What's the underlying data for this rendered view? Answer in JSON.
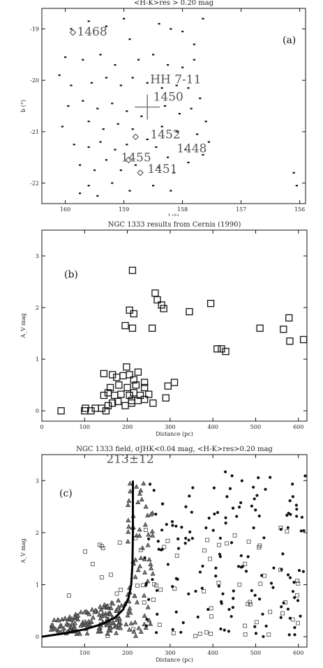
{
  "chart_data": [
    {
      "id": "a",
      "type": "scatter",
      "title": "<H-K>res > 0.20 mag",
      "xlabel": "l (°)",
      "ylabel": "b (°)",
      "panel_label": "(a)",
      "xlim": [
        160.4,
        155.9
      ],
      "ylim": [
        -22.4,
        -18.6
      ],
      "xticks": [
        160,
        159,
        158,
        157,
        156
      ],
      "yticks": [
        -19,
        -20,
        -21,
        -22
      ],
      "cross_label": "HH 7-11",
      "cross": [
        158.6,
        -20.52
      ],
      "annotations": [
        {
          "label": "1468",
          "x": 159.8,
          "y": -19.05
        },
        {
          "label": "1450",
          "x": 158.5,
          "y": -20.32
        },
        {
          "label": "1452",
          "x": 158.55,
          "y": -21.05
        },
        {
          "label": "1448",
          "x": 158.1,
          "y": -21.32
        },
        {
          "label": "1455",
          "x": 159.05,
          "y": -21.5
        },
        {
          "label": "1451",
          "x": 158.6,
          "y": -21.72
        }
      ],
      "markers": [
        {
          "x": 159.87,
          "y": -19.07
        },
        {
          "x": 158.8,
          "y": -21.1
        },
        {
          "x": 158.92,
          "y": -21.55
        },
        {
          "x": 158.72,
          "y": -21.8
        }
      ],
      "points": [
        [
          159.9,
          -19.0
        ],
        [
          159.6,
          -18.85
        ],
        [
          159.3,
          -18.95
        ],
        [
          159.0,
          -18.8
        ],
        [
          158.9,
          -19.2
        ],
        [
          158.4,
          -18.9
        ],
        [
          158.2,
          -19.0
        ],
        [
          158.0,
          -19.05
        ],
        [
          157.8,
          -19.3
        ],
        [
          157.65,
          -18.8
        ],
        [
          160.0,
          -19.55
        ],
        [
          159.7,
          -19.6
        ],
        [
          159.4,
          -19.5
        ],
        [
          159.15,
          -19.7
        ],
        [
          158.75,
          -19.6
        ],
        [
          158.5,
          -19.5
        ],
        [
          158.25,
          -19.7
        ],
        [
          158.0,
          -19.75
        ],
        [
          157.8,
          -19.6
        ],
        [
          160.1,
          -19.9
        ],
        [
          159.9,
          -20.1
        ],
        [
          159.55,
          -20.05
        ],
        [
          159.3,
          -19.95
        ],
        [
          159.05,
          -20.1
        ],
        [
          158.85,
          -19.95
        ],
        [
          158.6,
          -20.05
        ],
        [
          158.35,
          -20.15
        ],
        [
          158.1,
          -20.1
        ],
        [
          157.9,
          -20.15
        ],
        [
          157.7,
          -20.35
        ],
        [
          159.95,
          -20.5
        ],
        [
          159.7,
          -20.4
        ],
        [
          159.45,
          -20.55
        ],
        [
          159.2,
          -20.45
        ],
        [
          158.95,
          -20.6
        ],
        [
          158.7,
          -20.7
        ],
        [
          158.3,
          -20.5
        ],
        [
          158.05,
          -20.65
        ],
        [
          157.85,
          -20.55
        ],
        [
          157.6,
          -20.8
        ],
        [
          160.05,
          -20.9
        ],
        [
          159.6,
          -20.8
        ],
        [
          159.35,
          -20.95
        ],
        [
          159.1,
          -20.85
        ],
        [
          158.85,
          -20.95
        ],
        [
          158.6,
          -21.15
        ],
        [
          158.35,
          -20.9
        ],
        [
          158.1,
          -21.0
        ],
        [
          157.75,
          -21.05
        ],
        [
          157.55,
          -21.2
        ],
        [
          159.85,
          -21.25
        ],
        [
          159.6,
          -21.3
        ],
        [
          159.4,
          -21.2
        ],
        [
          159.15,
          -21.35
        ],
        [
          158.95,
          -21.25
        ],
        [
          158.45,
          -21.3
        ],
        [
          158.25,
          -21.5
        ],
        [
          157.95,
          -21.35
        ],
        [
          157.65,
          -21.45
        ],
        [
          159.75,
          -21.65
        ],
        [
          159.5,
          -21.75
        ],
        [
          159.3,
          -21.55
        ],
        [
          159.05,
          -21.75
        ],
        [
          158.8,
          -21.65
        ],
        [
          158.4,
          -21.7
        ],
        [
          158.15,
          -21.8
        ],
        [
          157.9,
          -21.6
        ],
        [
          159.6,
          -22.05
        ],
        [
          159.2,
          -22.0
        ],
        [
          158.9,
          -22.15
        ],
        [
          158.5,
          -22.05
        ],
        [
          158.2,
          -22.15
        ],
        [
          156.1,
          -21.8
        ],
        [
          156.05,
          -22.05
        ],
        [
          159.75,
          -22.2
        ],
        [
          159.45,
          -22.25
        ]
      ]
    },
    {
      "id": "b",
      "type": "scatter",
      "title": "NGC 1333 results from Cernis (1990)",
      "xlabel": "Distance (pc)",
      "ylabel": "A_V mag",
      "panel_label": "(b)",
      "xlim": [
        0,
        620
      ],
      "ylim": [
        -0.2,
        3.5
      ],
      "xticks": [
        0,
        100,
        200,
        300,
        400,
        500,
        600
      ],
      "yticks": [
        0,
        1,
        2,
        3
      ],
      "points": [
        [
          45,
          0.0
        ],
        [
          100,
          0.0
        ],
        [
          102,
          0.05
        ],
        [
          115,
          0.0
        ],
        [
          125,
          0.05
        ],
        [
          140,
          0.05
        ],
        [
          150,
          0.0
        ],
        [
          155,
          0.1
        ],
        [
          165,
          0.15
        ],
        [
          178,
          0.18
        ],
        [
          195,
          0.1
        ],
        [
          210,
          0.15
        ],
        [
          225,
          0.2
        ],
        [
          240,
          0.22
        ],
        [
          260,
          0.15
        ],
        [
          145,
          0.3
        ],
        [
          155,
          0.35
        ],
        [
          170,
          0.3
        ],
        [
          185,
          0.32
        ],
        [
          205,
          0.3
        ],
        [
          215,
          0.35
        ],
        [
          230,
          0.3
        ],
        [
          250,
          0.32
        ],
        [
          160,
          0.45
        ],
        [
          180,
          0.5
        ],
        [
          200,
          0.45
        ],
        [
          220,
          0.5
        ],
        [
          240,
          0.45
        ],
        [
          145,
          0.72
        ],
        [
          165,
          0.7
        ],
        [
          175,
          0.65
        ],
        [
          190,
          0.68
        ],
        [
          205,
          0.7
        ],
        [
          215,
          0.6
        ],
        [
          198,
          0.85
        ],
        [
          225,
          0.75
        ],
        [
          240,
          0.55
        ],
        [
          210,
          0.2
        ],
        [
          290,
          0.25
        ],
        [
          295,
          0.48
        ],
        [
          310,
          0.55
        ],
        [
          195,
          1.65
        ],
        [
          212,
          1.6
        ],
        [
          205,
          1.95
        ],
        [
          215,
          1.88
        ],
        [
          258,
          1.6
        ],
        [
          265,
          2.28
        ],
        [
          270,
          2.15
        ],
        [
          280,
          2.05
        ],
        [
          285,
          1.98
        ],
        [
          345,
          1.92
        ],
        [
          395,
          2.08
        ],
        [
          212,
          2.72
        ],
        [
          410,
          1.2
        ],
        [
          420,
          1.2
        ],
        [
          430,
          1.15
        ],
        [
          510,
          1.6
        ],
        [
          565,
          1.58
        ],
        [
          578,
          1.8
        ],
        [
          580,
          1.35
        ],
        [
          612,
          1.38
        ]
      ]
    },
    {
      "id": "c",
      "type": "scatter",
      "title": "NGC 1333 field, σJHK<0.04 mag, <H-K>res>0.20 mag",
      "xlabel": "Distance (pc)",
      "ylabel": "A_V mag",
      "panel_label": "(c)",
      "curve_label": "213±12",
      "xlim": [
        0,
        620
      ],
      "ylim": [
        -0.2,
        3.5
      ],
      "xticks": [
        100,
        200,
        300,
        400,
        500,
        600
      ],
      "yticks": [
        0,
        1,
        2,
        3
      ],
      "curve": [
        [
          0,
          0.0
        ],
        [
          50,
          0.06
        ],
        [
          100,
          0.14
        ],
        [
          140,
          0.24
        ],
        [
          170,
          0.36
        ],
        [
          190,
          0.52
        ],
        [
          203,
          0.75
        ],
        [
          209,
          1.0
        ],
        [
          212,
          1.4
        ],
        [
          213,
          2.0
        ],
        [
          213,
          2.5
        ],
        [
          213,
          3.0
        ]
      ]
    }
  ]
}
